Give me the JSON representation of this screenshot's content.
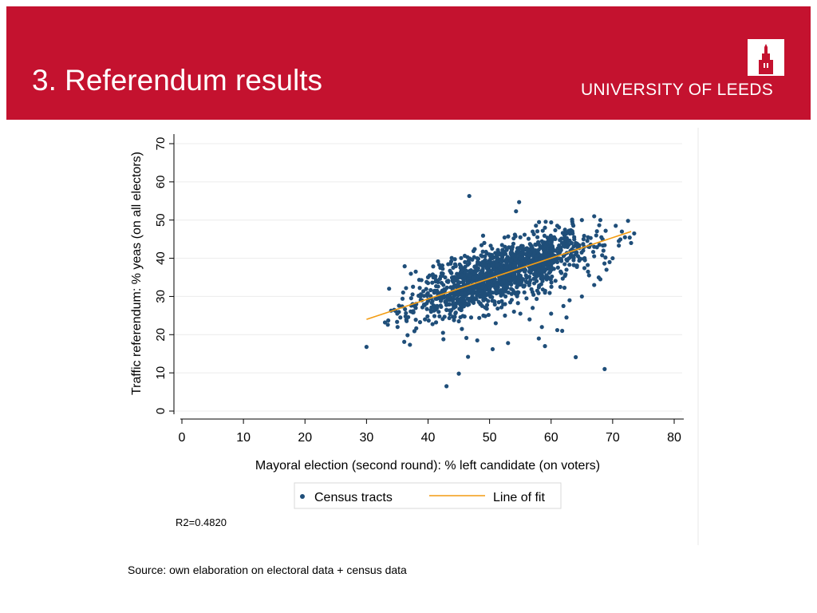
{
  "header": {
    "title": "3. Referendum results",
    "logo_text": "UNIVERSITY OF LEEDS",
    "bg_color": "#C4122F"
  },
  "chart_data": {
    "type": "scatter",
    "xlabel": "Mayoral election (second round): % left candidate (on voters)",
    "ylabel": "Traffic referendum: % yeas (on all electors)",
    "xlim": [
      0,
      80
    ],
    "ylim": [
      0,
      70
    ],
    "x_ticks": [
      0,
      10,
      20,
      30,
      40,
      50,
      60,
      70,
      80
    ],
    "y_ticks": [
      0,
      10,
      20,
      30,
      40,
      50,
      60,
      70
    ],
    "grid": true,
    "legend_position": "bottom",
    "series": [
      {
        "name": "Census tracts",
        "color": "#1F4E79",
        "marker": "point",
        "points": [
          [
            46.7,
            56.3
          ],
          [
            54.8,
            54.7
          ],
          [
            54.3,
            52.3
          ],
          [
            30.0,
            16.8
          ],
          [
            43.0,
            6.5
          ],
          [
            45.0,
            9.8
          ],
          [
            46.5,
            14.2
          ],
          [
            42.5,
            18.8
          ],
          [
            48.0,
            18.5
          ],
          [
            50.5,
            16.2
          ],
          [
            53.0,
            17.8
          ],
          [
            58.0,
            19.0
          ],
          [
            59.0,
            17.0
          ],
          [
            61.0,
            21.2
          ],
          [
            61.8,
            21.0
          ],
          [
            64.0,
            14.1
          ],
          [
            68.7,
            11.0
          ],
          [
            36.2,
            37.9
          ],
          [
            38.0,
            36.5
          ],
          [
            42.0,
            37.5
          ],
          [
            33.0,
            23.2
          ],
          [
            34.5,
            26.5
          ],
          [
            35.5,
            24.5
          ],
          [
            37.5,
            28.0
          ],
          [
            45.0,
            23.5
          ],
          [
            47.0,
            24.5
          ],
          [
            49.0,
            25.0
          ],
          [
            51.0,
            23.0
          ],
          [
            52.5,
            25.0
          ],
          [
            55.0,
            25.5
          ],
          [
            56.5,
            24.0
          ],
          [
            60.0,
            25.5
          ],
          [
            62.0,
            27.5
          ],
          [
            63.0,
            29.0
          ],
          [
            65.0,
            30.0
          ],
          [
            67.0,
            33.0
          ],
          [
            68.0,
            34.5
          ],
          [
            69.0,
            37.0
          ],
          [
            70.0,
            40.0
          ],
          [
            72.0,
            45.5
          ],
          [
            73.0,
            44.0
          ],
          [
            73.5,
            46.5
          ],
          [
            72.5,
            49.8
          ],
          [
            70.5,
            48.5
          ],
          [
            68.0,
            50.0
          ],
          [
            67.0,
            51.0
          ],
          [
            65.0,
            50.0
          ],
          [
            63.5,
            49.0
          ],
          [
            61.0,
            48.5
          ],
          [
            59.0,
            48.0
          ],
          [
            57.0,
            47.0
          ],
          [
            55.0,
            45.5
          ],
          [
            52.5,
            43.0
          ],
          [
            50.0,
            41.0
          ],
          [
            48.0,
            40.0
          ],
          [
            46.0,
            39.0
          ],
          [
            44.0,
            35.0
          ],
          [
            42.5,
            33.0
          ],
          [
            41.0,
            31.0
          ],
          [
            39.0,
            29.0
          ],
          [
            38.0,
            27.0
          ],
          [
            40.5,
            26.0
          ],
          [
            44.5,
            28.0
          ],
          [
            47.5,
            29.5
          ],
          [
            50.5,
            31.0
          ],
          [
            53.5,
            32.0
          ],
          [
            56.5,
            33.5
          ],
          [
            59.5,
            35.0
          ],
          [
            62.5,
            37.0
          ],
          [
            65.5,
            39.5
          ],
          [
            68.5,
            42.0
          ],
          [
            71.0,
            44.5
          ],
          [
            66.0,
            45.5
          ],
          [
            64.0,
            44.0
          ],
          [
            62.0,
            43.5
          ],
          [
            60.0,
            42.0
          ],
          [
            58.0,
            41.0
          ],
          [
            56.0,
            40.0
          ],
          [
            54.0,
            38.0
          ],
          [
            52.0,
            37.0
          ],
          [
            50.0,
            35.5
          ],
          [
            48.0,
            34.0
          ],
          [
            46.0,
            33.0
          ],
          [
            44.0,
            31.5
          ],
          [
            52.0,
            33.0
          ],
          [
            55.0,
            35.0
          ],
          [
            58.0,
            37.0
          ],
          [
            61.0,
            39.0
          ],
          [
            64.0,
            41.0
          ],
          [
            67.0,
            43.0
          ],
          [
            57.5,
            43.5
          ],
          [
            60.5,
            45.5
          ],
          [
            63.5,
            46.5
          ],
          [
            53.5,
            39.5
          ],
          [
            49.5,
            37.5
          ],
          [
            45.5,
            35.5
          ],
          [
            56.0,
            29.5
          ],
          [
            59.0,
            31.0
          ],
          [
            61.5,
            32.5
          ],
          [
            48.5,
            28.0
          ],
          [
            43.0,
            26.5
          ],
          [
            40.0,
            33.5
          ],
          [
            35.0,
            25.5
          ],
          [
            47.0,
            31.5
          ],
          [
            51.5,
            28.5
          ],
          [
            54.5,
            30.5
          ],
          [
            57.0,
            27.0
          ],
          [
            66.0,
            36.5
          ],
          [
            69.5,
            39.0
          ],
          [
            71.5,
            47.0
          ],
          [
            45.5,
            21.5
          ],
          [
            58.5,
            22.0
          ],
          [
            62.5,
            24.5
          ],
          [
            39.5,
            24.0
          ]
        ]
      },
      {
        "name": "Line of fit",
        "type": "line",
        "color": "#F39C12",
        "points": [
          [
            30,
            24.0
          ],
          [
            73,
            47.0
          ]
        ]
      }
    ],
    "annotation": "R2=0.4820"
  },
  "footer": {
    "source": "Source: own elaboration on electoral data + census data"
  }
}
